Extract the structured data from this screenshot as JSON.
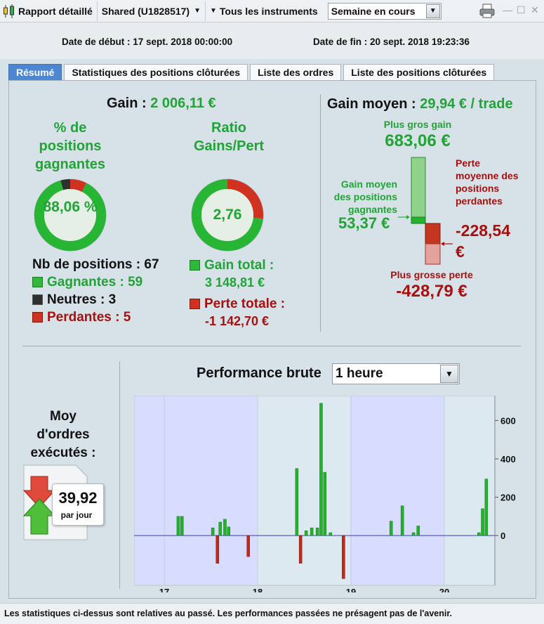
{
  "toolbar": {
    "report_label": "Rapport détaillé",
    "account_label": "Shared (U1828517)",
    "instruments_label": "Tous les instruments",
    "period_select": "Semaine en cours"
  },
  "dates": {
    "start": "Date de début : 17 sept. 2018 00:00:00",
    "end": "Date de fin : 20 sept. 2018 19:23:36"
  },
  "tabs": [
    {
      "label": "Résumé",
      "active": true
    },
    {
      "label": "Statistiques des positions clôturées"
    },
    {
      "label": "Liste des ordres"
    },
    {
      "label": "Liste des positions clôturées"
    }
  ],
  "summary": {
    "gain_label": "Gain :",
    "gain_value": "2 006,11 €",
    "pct_winning_title": "% de positions gagnantes",
    "pct_winning_value": "88,06 %",
    "pct_winning_fraction": 0.8806,
    "neutral_fraction": 0.0448,
    "losing_fraction": 0.0746,
    "ratio_title": "Ratio Gains/Pert",
    "ratio_value": "2,76",
    "ratio_gain_fraction": 0.7337,
    "nb_positions": "Nb de positions : 67",
    "winning": "Gagnantes : 59",
    "neutral": "Neutres : 3",
    "losing": "Perdantes : 5",
    "gain_total_label": "Gain total :",
    "gain_total_value": "3 148,81 €",
    "loss_total_label": "Perte totale :",
    "loss_total_value": "-1 142,70 €"
  },
  "average": {
    "label": "Gain moyen :",
    "value": "29,94 € / trade",
    "max_gain_label": "Plus gros gain",
    "max_gain_value": "683,06 €",
    "avg_win_label": "Gain moyen des positions gagnantes",
    "avg_win_value": "53,37 €",
    "avg_loss_label": "Perte moyenne des positions perdantes",
    "avg_loss_value": "-228,54 €",
    "max_loss_label": "Plus grosse perte",
    "max_loss_value": "-428,79 €"
  },
  "orders": {
    "label": "Moy d'ordres exécutés :",
    "value": "39,92",
    "unit": "par jour"
  },
  "performance": {
    "label": "Performance brute",
    "interval": "1 heure"
  },
  "chart_data": {
    "type": "bar",
    "x_tick_labels": [
      "17",
      "18",
      "19",
      "20"
    ],
    "y_tick_labels": [
      "600",
      "400",
      "200",
      "0"
    ],
    "ylim": [
      -260,
      730
    ],
    "series": [
      {
        "color": "#22b22c",
        "x": [
          17.15,
          17.19,
          17.52,
          17.6,
          17.65,
          17.69,
          18.42,
          18.52,
          18.58,
          18.64,
          18.68,
          18.72,
          18.78,
          19.43,
          19.55,
          19.67,
          19.72,
          20.37,
          20.41,
          20.45
        ],
        "values": [
          100,
          100,
          40,
          70,
          85,
          45,
          350,
          25,
          40,
          40,
          690,
          330,
          15,
          75,
          155,
          15,
          50,
          15,
          140,
          295
        ]
      },
      {
        "color": "#c02a1a",
        "x": [
          17.57,
          17.9,
          18.46,
          18.92
        ],
        "values": [
          -145,
          -110,
          -145,
          -225
        ]
      }
    ]
  },
  "footer": {
    "text": "Les statistiques ci-dessus sont relatives au passé. Les performances passées ne présagent pas de l'avenir."
  },
  "colors": {
    "green": "#21a336",
    "red": "#a80f0f",
    "tab_active": "#4d86d1",
    "neutral": "#2e3030"
  }
}
